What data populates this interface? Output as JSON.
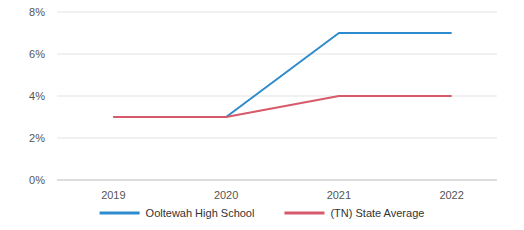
{
  "chart_data": {
    "type": "line",
    "categories": [
      "2019",
      "2020",
      "2021",
      "2022"
    ],
    "series": [
      {
        "name": "Ooltewah High School",
        "color": "#2e8bcd",
        "values": [
          3,
          3,
          7,
          7
        ]
      },
      {
        "name": "(TN) State Average",
        "color": "#d65a6a",
        "values": [
          3,
          3,
          4,
          4
        ]
      }
    ],
    "ylim": [
      0,
      8
    ],
    "yticks": [
      {
        "value": 0,
        "label": "0%"
      },
      {
        "value": 2,
        "label": "2%"
      },
      {
        "value": 4,
        "label": "4%"
      },
      {
        "value": 6,
        "label": "6%"
      },
      {
        "value": 8,
        "label": "8%"
      }
    ],
    "grid": true,
    "legend": "bottom"
  }
}
